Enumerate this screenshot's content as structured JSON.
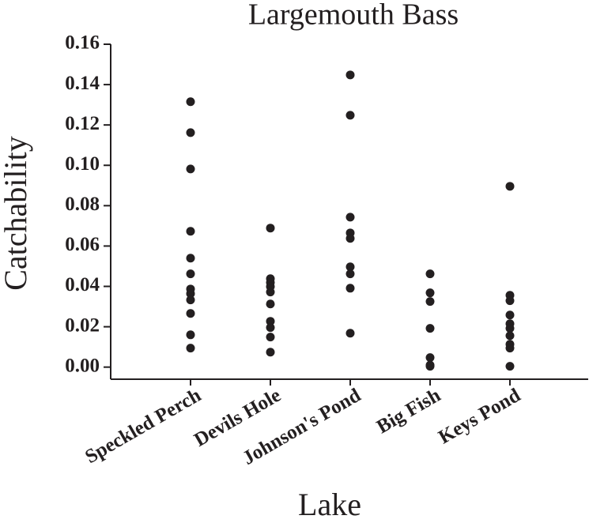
{
  "chart_data": {
    "type": "strip",
    "title": "Largemouth Bass",
    "x_label": "Lake",
    "y_label": "Catchability",
    "categories": [
      "Speckled Perch",
      "Devils Hole",
      "Johnson's Pond",
      "Big Fish",
      "Keys Pond"
    ],
    "values": [
      [
        0.1315,
        0.1162,
        0.0982,
        0.0673,
        0.054,
        0.0462,
        0.0387,
        0.0364,
        0.0333,
        0.0266,
        0.016,
        0.0094
      ],
      [
        0.0689,
        0.0438,
        0.0419,
        0.0399,
        0.0372,
        0.0313,
        0.0227,
        0.0196,
        0.0149,
        0.0074
      ],
      [
        0.1448,
        0.1248,
        0.0743,
        0.0665,
        0.0638,
        0.0497,
        0.0462,
        0.0391,
        0.0168
      ],
      [
        0.0462,
        0.0368,
        0.0325,
        0.0192,
        0.0047,
        0.001,
        0.0004
      ],
      [
        0.0896,
        0.0356,
        0.0329,
        0.0258,
        0.0215,
        0.0192,
        0.0156,
        0.0113,
        0.0094,
        0.0004
      ]
    ],
    "color": "#231f20",
    "ylim": [
      -0.006,
      0.16
    ],
    "yticks": [
      {
        "value": 0,
        "label": "0.00"
      },
      0.02,
      0.04,
      0.06,
      0.08,
      {
        "value": 0.1,
        "label": "0.10"
      },
      0.12,
      0.14,
      0.16
    ]
  }
}
